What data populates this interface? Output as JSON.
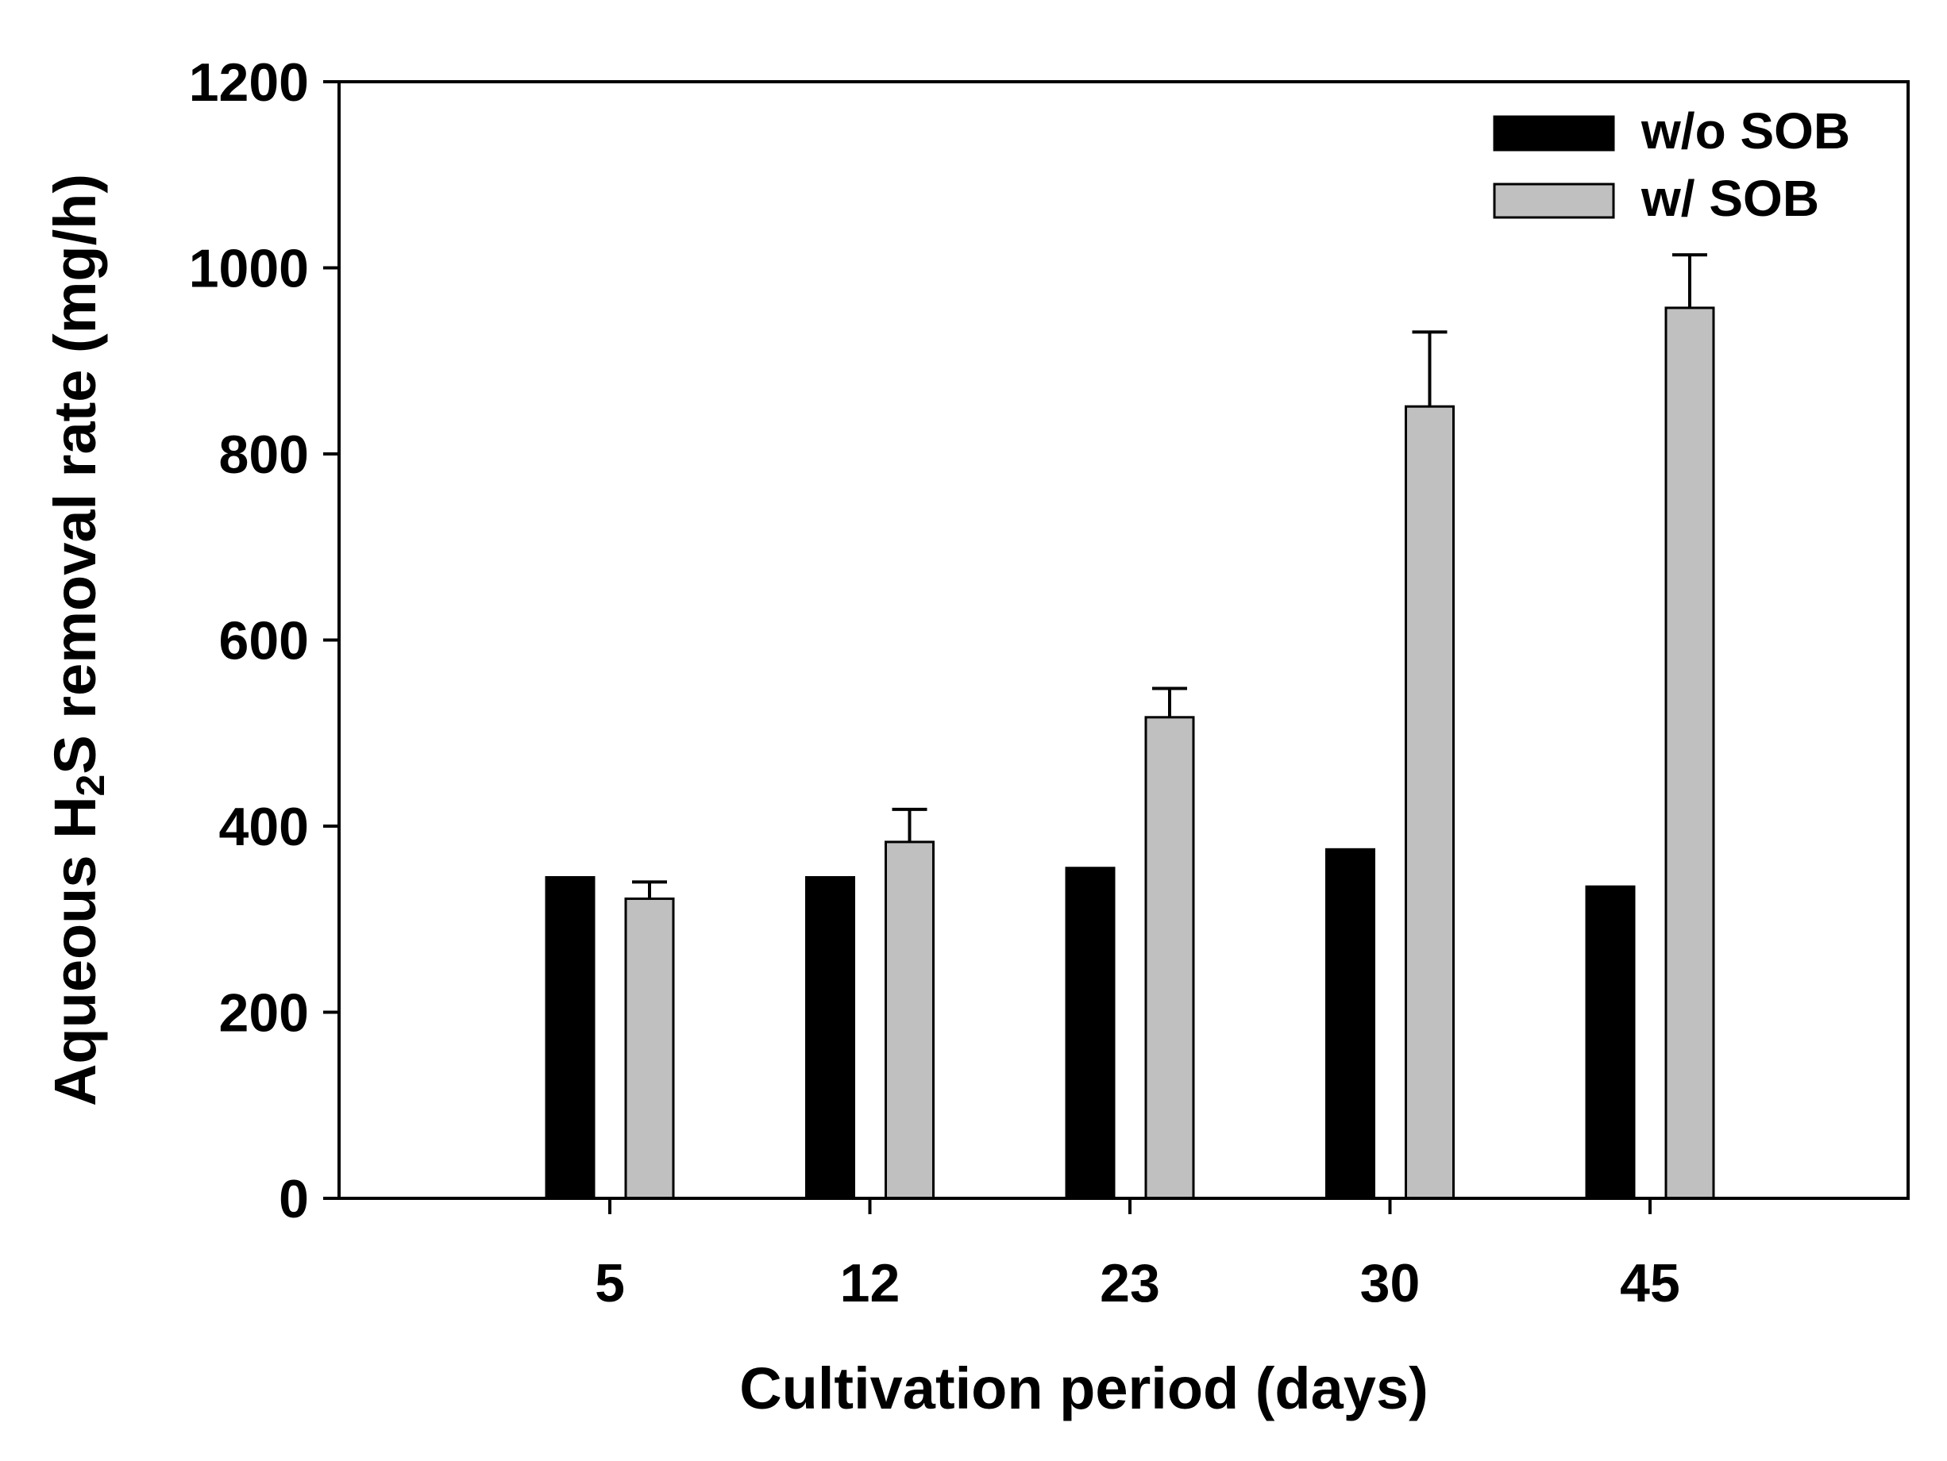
{
  "chart_data": {
    "type": "bar",
    "title": "",
    "xlabel": "Cultivation period (days)",
    "ylabel": {
      "prefix": "Aqueous H",
      "subscript": "2",
      "suffix": "S removal rate (mg/h)"
    },
    "categories": [
      "5",
      "12",
      "23",
      "30",
      "45"
    ],
    "ylim": [
      0,
      1200
    ],
    "yticks": [
      "0",
      "200",
      "400",
      "600",
      "800",
      "1000",
      "1200"
    ],
    "grid": false,
    "legend_position": "top-right",
    "series": [
      {
        "name": "w/o SOB",
        "color": "#000000",
        "values": [
          345,
          345,
          355,
          375,
          335
        ],
        "errors": [
          0,
          0,
          0,
          0,
          0
        ]
      },
      {
        "name": "w/ SOB",
        "color": "#c0c0c0",
        "values": [
          322,
          383,
          517,
          851,
          957
        ],
        "errors": [
          18,
          35,
          31,
          80,
          57
        ]
      }
    ]
  }
}
